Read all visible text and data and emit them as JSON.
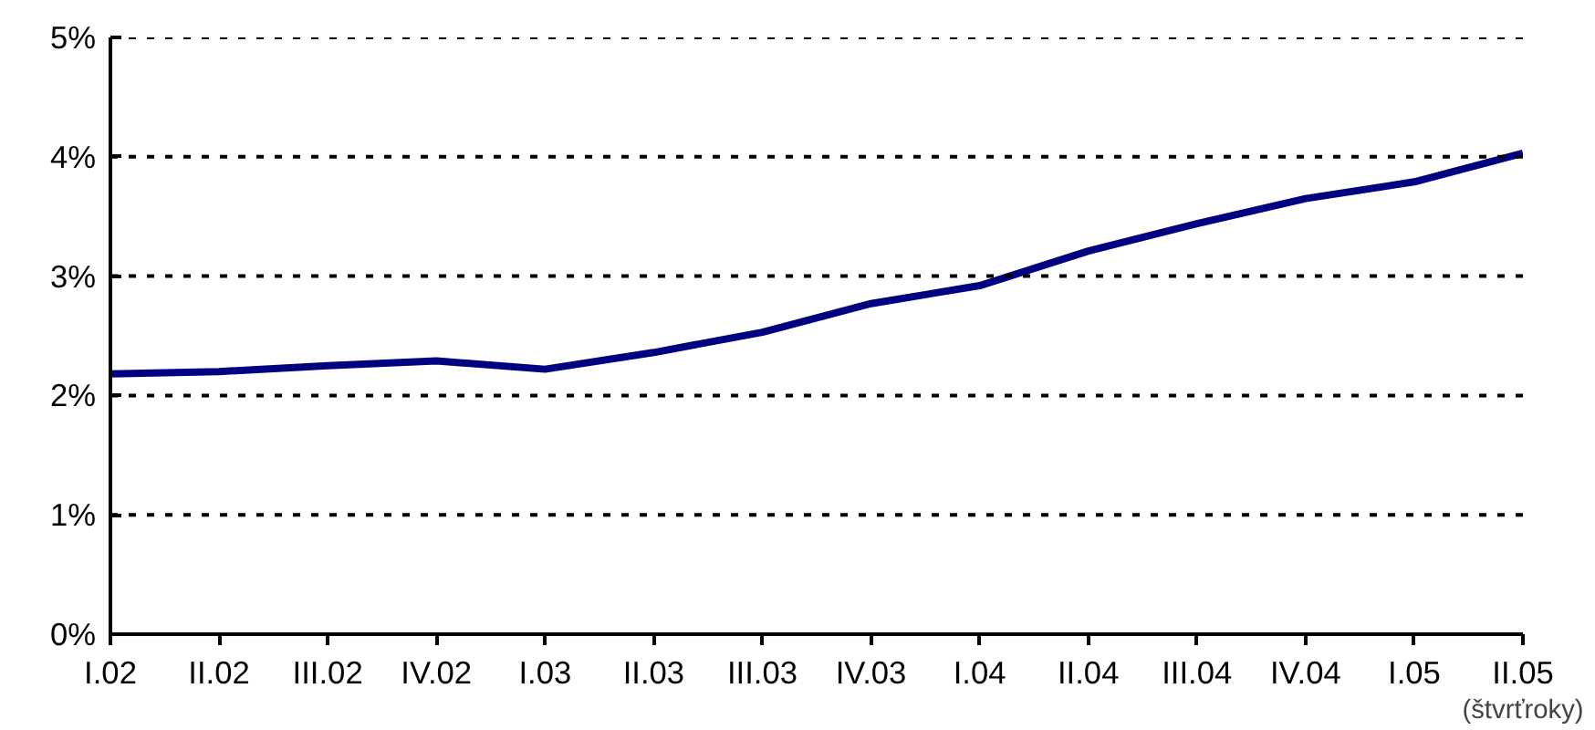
{
  "chart_data": {
    "type": "line",
    "categories": [
      "I.02",
      "II.02",
      "III.02",
      "IV.02",
      "I.03",
      "II.03",
      "III.03",
      "IV.03",
      "I.04",
      "II.04",
      "III.04",
      "IV.04",
      "I.05",
      "II.05"
    ],
    "series": [
      {
        "color": "#000080",
        "values": [
          2.18,
          2.2,
          2.25,
          2.29,
          2.22,
          2.36,
          2.53,
          2.77,
          2.92,
          3.21,
          3.44,
          3.65,
          3.79,
          4.03
        ]
      }
    ],
    "xlabel": "(štvrťroky)",
    "ylim": [
      0,
      5
    ],
    "yticks": [
      {
        "value": 0,
        "label": "0%"
      },
      {
        "value": 1,
        "label": "1%"
      },
      {
        "value": 2,
        "label": "2%"
      },
      {
        "value": 3,
        "label": "3%"
      },
      {
        "value": 4,
        "label": "4%"
      },
      {
        "value": 5,
        "label": "5%"
      }
    ],
    "grid": "y",
    "line_style": "solid",
    "marker": "none"
  }
}
